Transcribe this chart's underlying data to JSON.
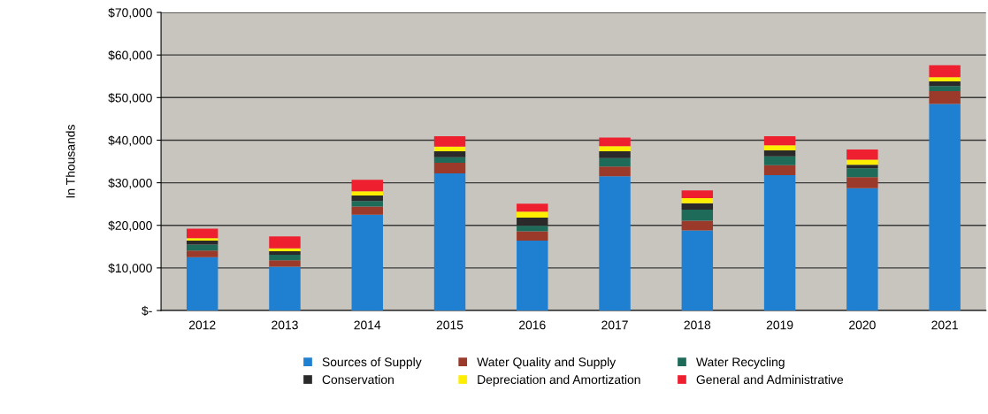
{
  "chart_data": {
    "type": "bar",
    "stacked": true,
    "ylabel": "In Thousands",
    "categories": [
      "2012",
      "2013",
      "2014",
      "2015",
      "2016",
      "2017",
      "2018",
      "2019",
      "2020",
      "2021"
    ],
    "series": [
      {
        "name": "Sources of Supply",
        "color": "#1f7fd0",
        "values": [
          12500,
          10300,
          22500,
          32200,
          16400,
          31500,
          18800,
          31800,
          28700,
          48500
        ]
      },
      {
        "name": "Water Quality and Supply",
        "color": "#9b3a2a",
        "values": [
          1600,
          1500,
          1900,
          2500,
          2200,
          2300,
          2300,
          2300,
          2600,
          3000
        ]
      },
      {
        "name": "Water Recycling",
        "color": "#1e6b5a",
        "values": [
          1400,
          1300,
          1300,
          1300,
          1300,
          2000,
          2600,
          2100,
          2100,
          1200
        ]
      },
      {
        "name": "Conservation",
        "color": "#2a2a2a",
        "values": [
          900,
          800,
          1300,
          1400,
          1900,
          1600,
          1500,
          1400,
          800,
          1100
        ]
      },
      {
        "name": "Depreciation and Amortization",
        "color": "#ffee00",
        "values": [
          600,
          700,
          1000,
          1100,
          1400,
          1200,
          1200,
          1200,
          1200,
          1000
        ]
      },
      {
        "name": "General and Administrative",
        "color": "#ee2030",
        "values": [
          2200,
          2800,
          2700,
          2400,
          1900,
          2000,
          1800,
          2100,
          2400,
          2800
        ]
      }
    ],
    "ylim": [
      0,
      70000
    ],
    "yticks": [
      {
        "value": 0,
        "label": "$-"
      },
      {
        "value": 10000,
        "label": "$10,000"
      },
      {
        "value": 20000,
        "label": "$20,000"
      },
      {
        "value": 30000,
        "label": "$30,000"
      },
      {
        "value": 40000,
        "label": "$40,000"
      },
      {
        "value": 50000,
        "label": "$50,000"
      },
      {
        "value": 60000,
        "label": "$60,000"
      },
      {
        "value": 70000,
        "label": "$70,000"
      }
    ],
    "grid": "y",
    "legend": "bottom"
  }
}
